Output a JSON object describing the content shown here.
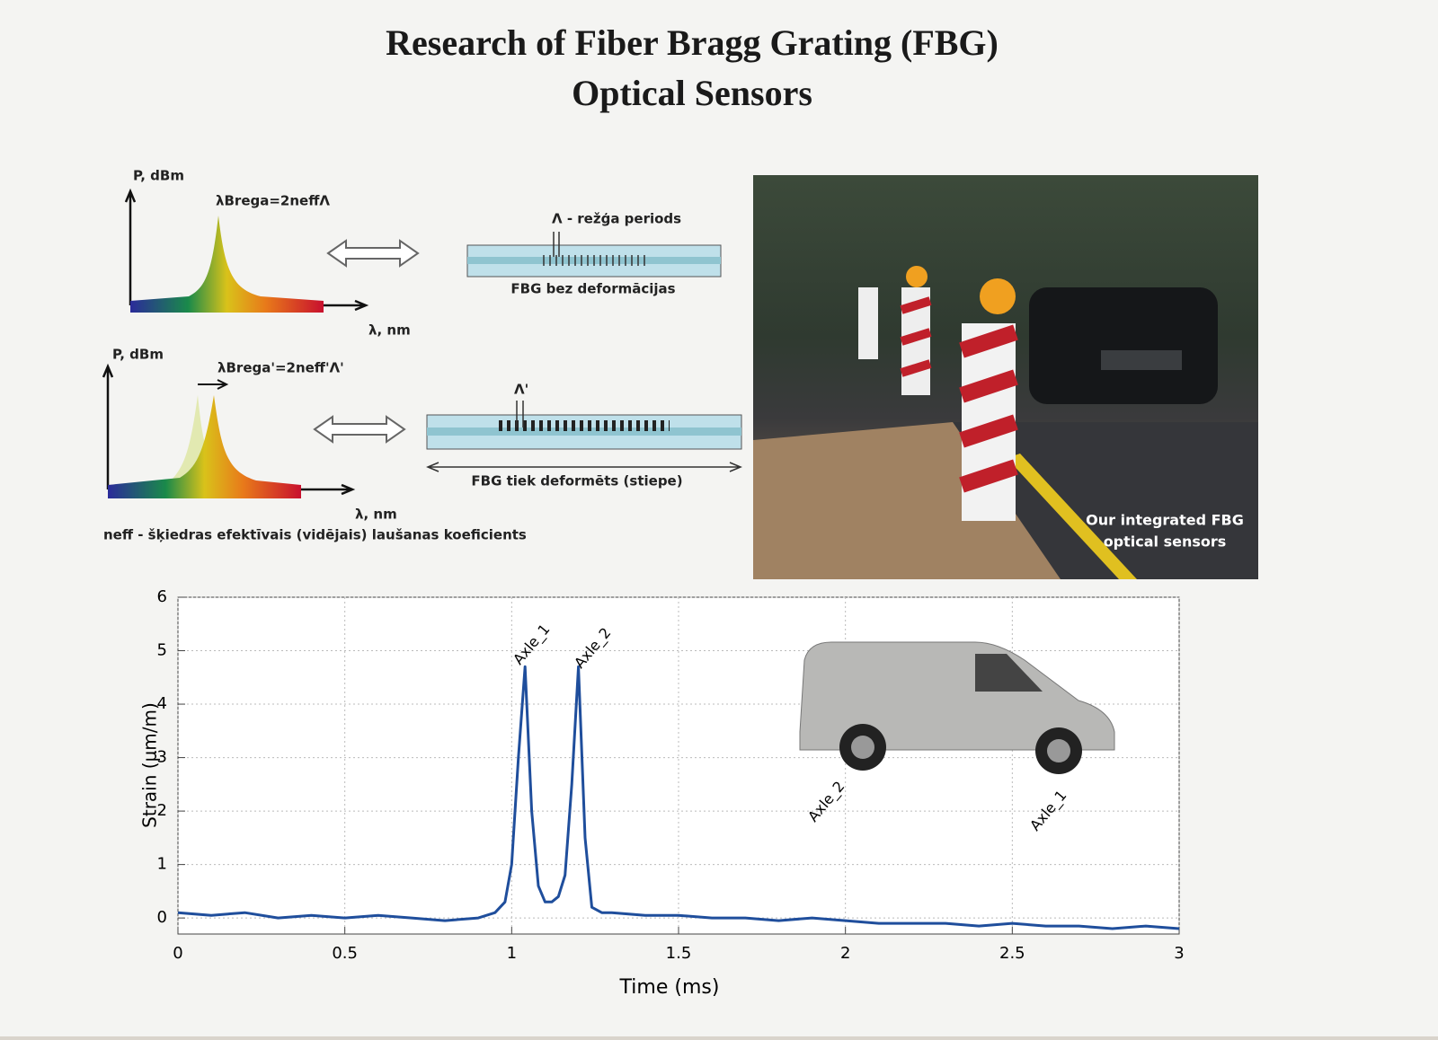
{
  "header": {
    "title_lines": [
      "Research of Fiber Bragg Grating (FBG)",
      "Optical Sensors"
    ]
  },
  "diagram": {
    "unstrained": {
      "y_label": "P, dBm",
      "formula": "λBrega=2neffΛ",
      "x_label": "λ, nm",
      "period_label": "Λ - režģa periods",
      "caption": "FBG bez deformācijas"
    },
    "strained": {
      "y_label": "P, dBm",
      "formula": "λBrega'=2neff'Λ'",
      "x_label": "λ, nm",
      "period_label": "Λ'",
      "caption": "FBG tiek deformēts (stiepe)"
    },
    "note": "neff - šķiedras efektīvais (vidējais) laušanas koeficients"
  },
  "photo": {
    "caption_lines": [
      "Our integrated FBG",
      "optical sensors"
    ]
  },
  "chart_data": {
    "type": "line",
    "xlabel": "Time (ms)",
    "ylabel": "Strain (μm/m)",
    "x": [
      0,
      0.1,
      0.2,
      0.3,
      0.4,
      0.5,
      0.6,
      0.7,
      0.8,
      0.9,
      0.95,
      0.98,
      1.0,
      1.02,
      1.04,
      1.06,
      1.08,
      1.1,
      1.12,
      1.14,
      1.16,
      1.18,
      1.2,
      1.22,
      1.24,
      1.27,
      1.3,
      1.4,
      1.5,
      1.6,
      1.7,
      1.8,
      1.9,
      2.0,
      2.1,
      2.2,
      2.3,
      2.4,
      2.5,
      2.6,
      2.7,
      2.8,
      2.9,
      3.0
    ],
    "values": [
      0.1,
      0.05,
      0.1,
      0.0,
      0.05,
      0.0,
      0.05,
      0.0,
      -0.05,
      0.0,
      0.1,
      0.3,
      1.0,
      3.0,
      4.7,
      2.0,
      0.6,
      0.3,
      0.3,
      0.4,
      0.8,
      2.5,
      4.7,
      1.5,
      0.2,
      0.1,
      0.1,
      0.05,
      0.05,
      0.0,
      0.0,
      -0.05,
      0.0,
      -0.05,
      -0.1,
      -0.1,
      -0.1,
      -0.15,
      -0.1,
      -0.15,
      -0.15,
      -0.2,
      -0.15,
      -0.2
    ],
    "color": "#1f4e9c",
    "xlim": [
      0,
      3
    ],
    "xticks": [
      0,
      0.5,
      1,
      1.5,
      2,
      2.5,
      3
    ],
    "ylim": [
      -0.3,
      6
    ],
    "yticks": [
      0,
      1,
      2,
      3,
      4,
      5,
      6
    ],
    "grid": true,
    "annotations": [
      "Axle_1",
      "Axle_2",
      "Axle_2",
      "Axle_1"
    ]
  }
}
